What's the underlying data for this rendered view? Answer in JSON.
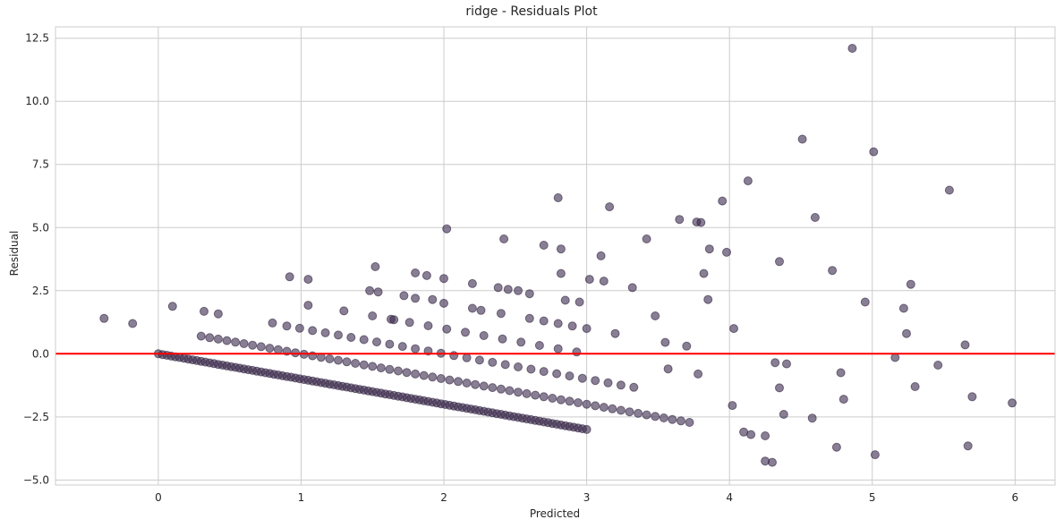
{
  "chart_data": {
    "type": "scatter",
    "title": "ridge - Residuals Plot",
    "xlabel": "Predicted",
    "ylabel": "Residual",
    "xlim": [
      -0.72,
      6.28
    ],
    "ylim": [
      -5.2,
      12.95
    ],
    "xticks": [
      0,
      1,
      2,
      3,
      4,
      5,
      6
    ],
    "xtick_labels": [
      "0",
      "1",
      "2",
      "3",
      "4",
      "5",
      "6"
    ],
    "yticks": [
      -5.0,
      -2.5,
      0.0,
      2.5,
      5.0,
      7.5,
      10.0,
      12.5
    ],
    "ytick_labels": [
      "−5.0",
      "−2.5",
      "0.0",
      "2.5",
      "5.0",
      "7.5",
      "10.0",
      "12.5"
    ],
    "grid": true,
    "reference_line": {
      "y": 0,
      "color": "#ff0000"
    },
    "point_color": "#3b2a4c",
    "bands": [
      {
        "x_start": 0.0,
        "x_end": 3.0,
        "step": 0.03,
        "slope": -1.0,
        "intercept": 0.0
      },
      {
        "x_start": 0.3,
        "x_end": 3.75,
        "step": 0.06,
        "slope": -1.0,
        "intercept": 1.0
      },
      {
        "x_start": 0.9,
        "x_end": 3.4,
        "step": 0.09,
        "slope": -1.0,
        "intercept": 2.0
      },
      {
        "x_start": 1.5,
        "x_end": 3.0,
        "step": 0.13,
        "slope": -1.0,
        "intercept": 3.0
      },
      {
        "x_start": 1.8,
        "x_end": 3.2,
        "step": 0.2,
        "slope": -1.0,
        "intercept": 4.0
      }
    ],
    "extra_points": [
      [
        -0.38,
        1.4
      ],
      [
        -0.18,
        1.2
      ],
      [
        0.1,
        1.88
      ],
      [
        0.32,
        1.68
      ],
      [
        0.42,
        1.58
      ],
      [
        0.8,
        1.22
      ],
      [
        0.92,
        3.05
      ],
      [
        1.05,
        2.95
      ],
      [
        1.05,
        1.92
      ],
      [
        1.3,
        1.7
      ],
      [
        1.52,
        3.45
      ],
      [
        1.48,
        2.5
      ],
      [
        1.54,
        2.45
      ],
      [
        1.65,
        1.35
      ],
      [
        1.72,
        2.3
      ],
      [
        1.8,
        3.2
      ],
      [
        1.88,
        3.1
      ],
      [
        1.92,
        2.15
      ],
      [
        2.0,
        2.98
      ],
      [
        2.02,
        4.95
      ],
      [
        2.2,
        2.78
      ],
      [
        2.26,
        1.72
      ],
      [
        2.38,
        2.62
      ],
      [
        2.42,
        4.55
      ],
      [
        2.45,
        2.55
      ],
      [
        2.52,
        2.5
      ],
      [
        2.6,
        2.38
      ],
      [
        2.7,
        4.3
      ],
      [
        2.7,
        1.3
      ],
      [
        2.8,
        6.18
      ],
      [
        2.82,
        4.15
      ],
      [
        2.82,
        3.18
      ],
      [
        2.85,
        2.12
      ],
      [
        2.9,
        1.1
      ],
      [
        2.95,
        2.05
      ],
      [
        3.02,
        2.95
      ],
      [
        3.1,
        3.88
      ],
      [
        3.12,
        2.88
      ],
      [
        3.16,
        5.82
      ],
      [
        3.32,
        2.62
      ],
      [
        3.42,
        4.55
      ],
      [
        3.48,
        1.5
      ],
      [
        3.55,
        0.45
      ],
      [
        3.57,
        -0.6
      ],
      [
        3.65,
        5.32
      ],
      [
        3.7,
        0.3
      ],
      [
        3.77,
        5.22
      ],
      [
        3.8,
        5.2
      ],
      [
        3.78,
        -0.8
      ],
      [
        3.82,
        3.18
      ],
      [
        3.85,
        2.15
      ],
      [
        3.86,
        4.15
      ],
      [
        3.95,
        6.05
      ],
      [
        3.98,
        4.02
      ],
      [
        4.02,
        -2.05
      ],
      [
        4.03,
        1.0
      ],
      [
        4.1,
        -3.1
      ],
      [
        4.13,
        6.85
      ],
      [
        4.15,
        -3.2
      ],
      [
        4.25,
        -3.25
      ],
      [
        4.25,
        -4.25
      ],
      [
        4.3,
        -4.3
      ],
      [
        4.32,
        -0.35
      ],
      [
        4.35,
        3.65
      ],
      [
        4.35,
        -1.35
      ],
      [
        4.38,
        -2.4
      ],
      [
        4.4,
        -0.4
      ],
      [
        4.51,
        8.5
      ],
      [
        4.58,
        -2.55
      ],
      [
        4.6,
        5.4
      ],
      [
        4.72,
        3.3
      ],
      [
        4.75,
        -3.7
      ],
      [
        4.78,
        -0.75
      ],
      [
        4.8,
        -1.8
      ],
      [
        4.86,
        12.1
      ],
      [
        4.95,
        2.05
      ],
      [
        5.01,
        8.0
      ],
      [
        5.02,
        -4.0
      ],
      [
        5.16,
        -0.15
      ],
      [
        5.22,
        1.8
      ],
      [
        5.24,
        0.8
      ],
      [
        5.27,
        2.75
      ],
      [
        5.3,
        -1.3
      ],
      [
        5.46,
        -0.45
      ],
      [
        5.54,
        6.48
      ],
      [
        5.65,
        0.35
      ],
      [
        5.67,
        -3.65
      ],
      [
        5.7,
        -1.7
      ],
      [
        5.98,
        -1.95
      ]
    ]
  }
}
